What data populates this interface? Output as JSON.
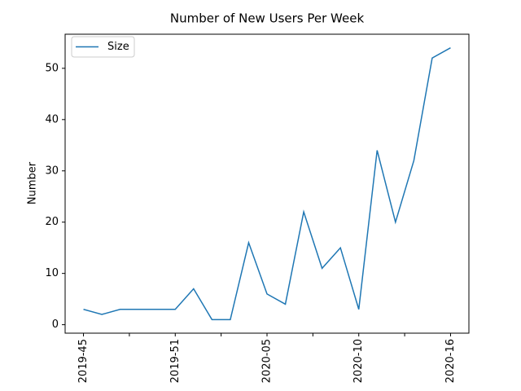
{
  "chart_data": {
    "type": "line",
    "title": "Number of New Users Per Week",
    "ylabel": "Number",
    "categories": [
      "2019-45",
      null,
      null,
      null,
      null,
      "2019-51",
      null,
      null,
      null,
      null,
      "2020-05",
      null,
      null,
      null,
      null,
      "2020-10",
      null,
      null,
      null,
      null,
      "2020-16"
    ],
    "series": [
      {
        "name": "Size",
        "color": "#1f77b4",
        "values": [
          3,
          2,
          3,
          3,
          3,
          3,
          7,
          1,
          1,
          16,
          6,
          4,
          22,
          11,
          15,
          3,
          34,
          20,
          32,
          52,
          54
        ]
      }
    ],
    "ylim": [
      -1.65,
      56.65
    ],
    "yticks": [
      0,
      10,
      20,
      30,
      40,
      50
    ],
    "legend": "upper left",
    "grid": false
  }
}
